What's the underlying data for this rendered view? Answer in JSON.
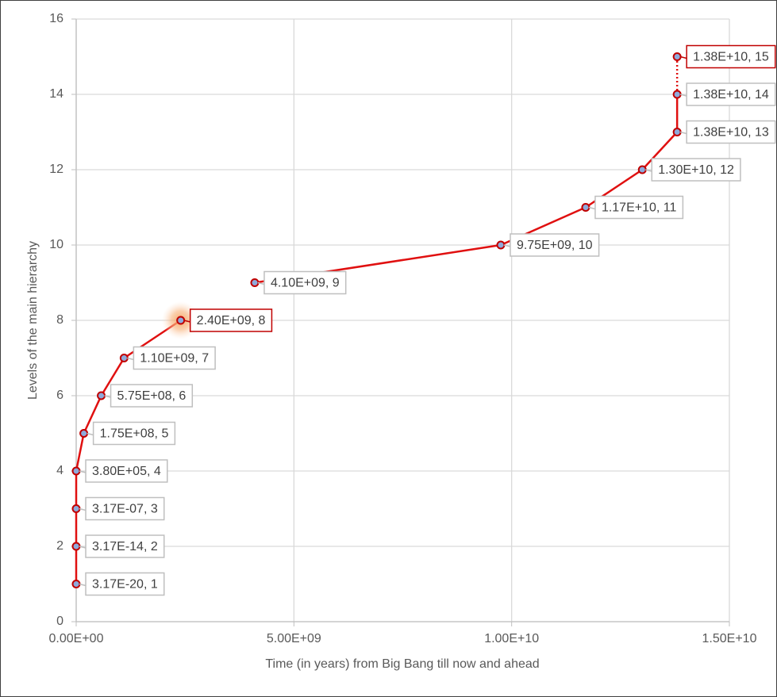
{
  "chart_data": {
    "type": "scatter",
    "x_label": "Time (in years) from Big Bang till now and ahead",
    "y_label": "Levels of the main hierarchy",
    "x": [
      3.17e-20,
      3.17e-14,
      3.17e-07,
      380000,
      175000000,
      575000000,
      1100000000,
      2400000000,
      4100000000,
      9750000000,
      11700000000,
      13000000000,
      13800000000,
      13800000000,
      13800000000
    ],
    "values": [
      1,
      2,
      3,
      4,
      5,
      6,
      7,
      8,
      9,
      10,
      11,
      12,
      13,
      14,
      15
    ],
    "value_labels": [
      "3.17E-20, 1",
      "3.17E-14, 2",
      "3.17E-07, 3",
      "3.80E+05, 4",
      "1.75E+08, 5",
      "5.75E+08, 6",
      "1.10E+09, 7",
      "2.40E+09, 8",
      "4.10E+09, 9",
      "9.75E+09, 10",
      "1.17E+10, 11",
      "1.30E+10, 12",
      "1.38E+10, 13",
      "1.38E+10, 14",
      "1.38E+10, 15"
    ],
    "line_color": "#e01010",
    "marker_fill": "#8eaadb",
    "segment_styles": [
      "solid",
      "solid",
      "solid",
      "solid",
      "solid",
      "solid",
      "solid",
      "none",
      "solid",
      "solid",
      "solid",
      "solid",
      "solid",
      "dotted"
    ],
    "label_border_colors": [
      "#bfbfbf",
      "#bfbfbf",
      "#bfbfbf",
      "#bfbfbf",
      "#bfbfbf",
      "#bfbfbf",
      "#bfbfbf",
      "#c00000",
      "#bfbfbf",
      "#bfbfbf",
      "#bfbfbf",
      "#bfbfbf",
      "#bfbfbf",
      "#bfbfbf",
      "#c00000"
    ],
    "point_glow": [
      false,
      false,
      false,
      false,
      false,
      false,
      false,
      true,
      false,
      false,
      false,
      false,
      false,
      false,
      false
    ],
    "xlim": [
      0,
      15000000000
    ],
    "xticks": [
      {
        "value": 0,
        "label": "0.00E+00"
      },
      {
        "value": 5000000000,
        "label": "5.00E+09"
      },
      {
        "value": 10000000000,
        "label": "1.00E+10"
      },
      {
        "value": 15000000000,
        "label": "1.50E+10"
      }
    ],
    "ylim": [
      0,
      16
    ],
    "yticks": [
      0,
      2,
      4,
      6,
      8,
      10,
      12,
      14,
      16
    ],
    "grid": true
  }
}
